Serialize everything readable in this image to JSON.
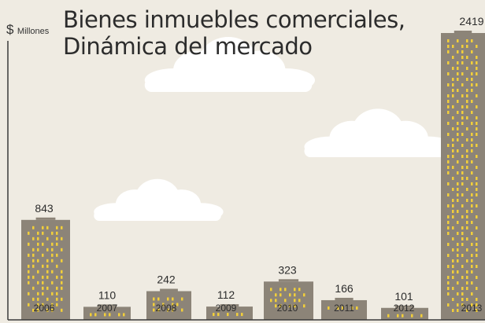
{
  "chart_data": {
    "type": "bar",
    "title": [
      "Bienes inmuebles comerciales,",
      "Dinámica del mercado"
    ],
    "ylabel_symbol": "$",
    "ylabel": "Millones",
    "categories": [
      "2006",
      "2007",
      "2008",
      "2009",
      "2010",
      "2011",
      "2012",
      "2013"
    ],
    "values": [
      843,
      110,
      242,
      112,
      323,
      166,
      101,
      2419
    ],
    "value_labels": [
      "843",
      "110",
      "242",
      "112",
      "323",
      "166",
      "101",
      "2419"
    ],
    "ylim": [
      0,
      2419
    ],
    "grid": false,
    "legend": "none"
  },
  "colors": {
    "background": "#efebe2",
    "building": "#8c8478",
    "window": "#f2cf3a",
    "cloud": "#ffffff",
    "axis": "#3a3a3a",
    "text": "#2c2c2c"
  }
}
